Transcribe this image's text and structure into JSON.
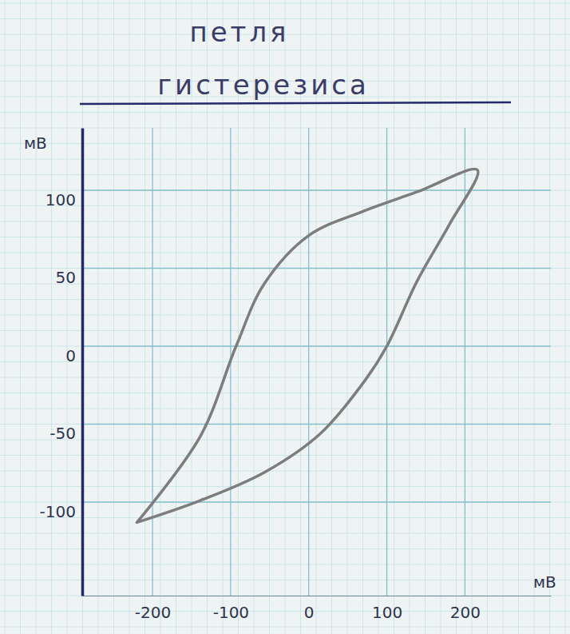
{
  "chart_data": {
    "type": "line",
    "title": "петля гистерезиса",
    "x_label": "мВ",
    "y_label": "мВ",
    "x": [
      -220,
      -139,
      -93,
      -57,
      0,
      67,
      139,
      216,
      180,
      139,
      100,
      72,
      15,
      -57,
      -139,
      -220
    ],
    "values": [
      -113,
      -58,
      0,
      40,
      71,
      86,
      99,
      113,
      78,
      42,
      0,
      -22,
      -56,
      -81,
      -99,
      -113
    ],
    "color": "#7d7d7d",
    "xlim": [
      -290,
      310
    ],
    "xticks": [
      -200,
      -100,
      0,
      100,
      200
    ],
    "ylim": [
      -160,
      140
    ],
    "yticks": [
      -100,
      -50,
      0,
      50,
      100
    ],
    "grid": true
  }
}
